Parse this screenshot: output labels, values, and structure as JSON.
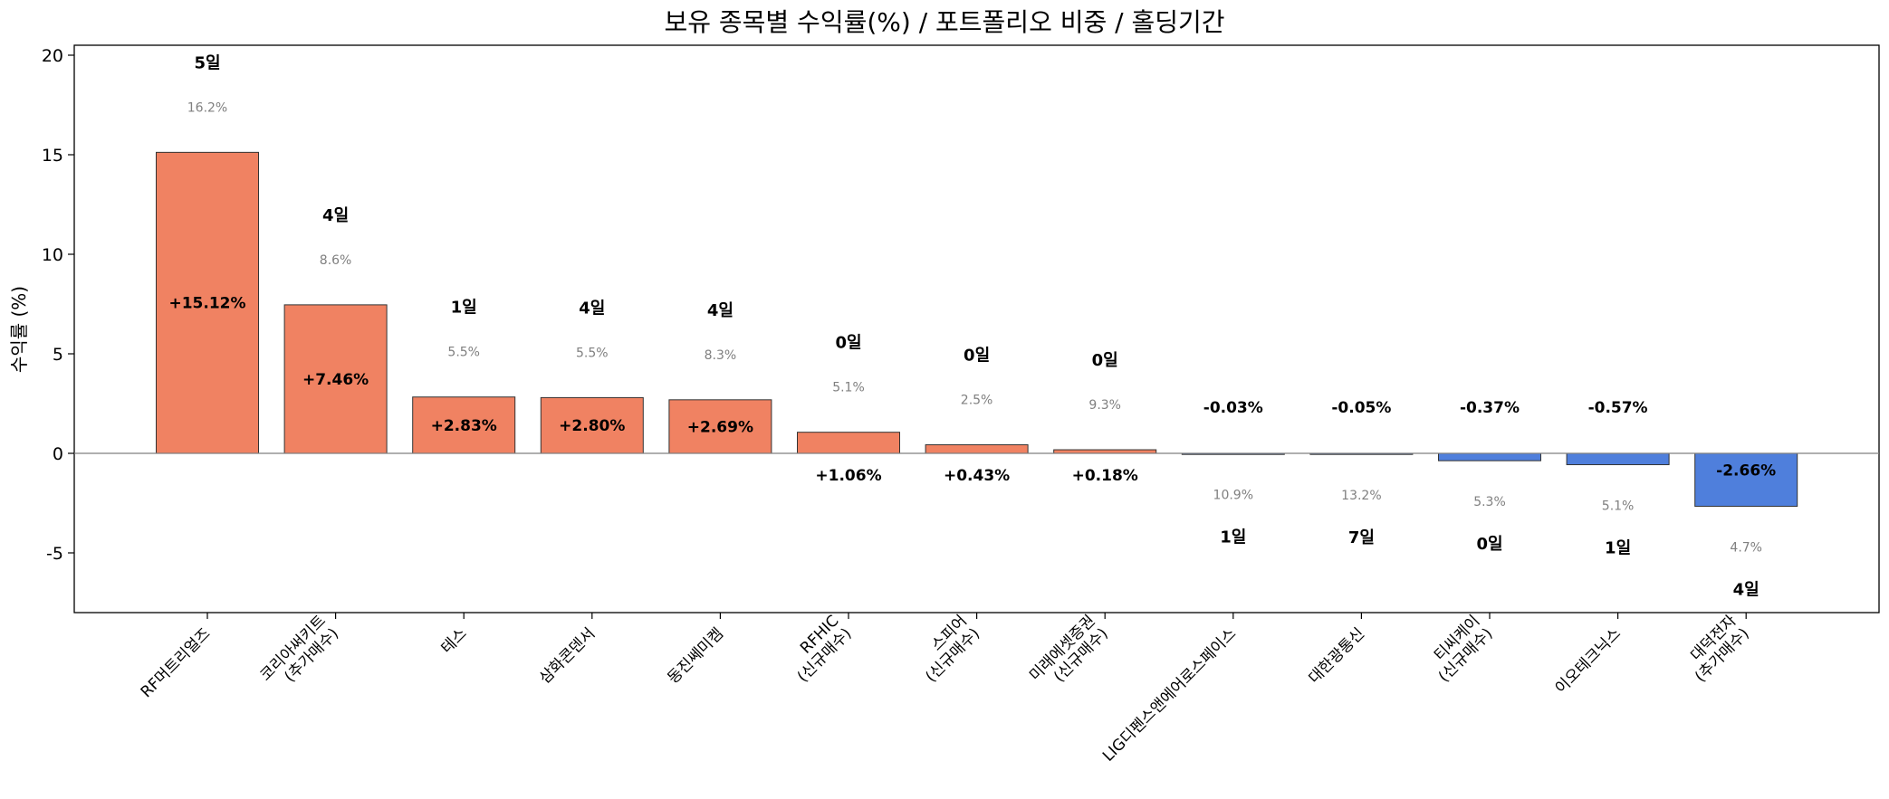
{
  "chart_data": {
    "type": "bar",
    "title": "보유 종목별 수익률(%) / 포트폴리오 비중 / 홀딩기간",
    "xlabel": "",
    "ylabel": "수익률 (%)",
    "ylim": [
      -8,
      20.5
    ],
    "yticks": [
      -5,
      0,
      5,
      10,
      15,
      20
    ],
    "ytick_labels": [
      "-5",
      "0",
      "5",
      "10",
      "15",
      "20"
    ],
    "grid": false,
    "legend": "none",
    "colors": {
      "positive": "#f08262",
      "negative": "#4f7fdc",
      "edge": "#333333",
      "zero_line": "#808080",
      "weight_text": "#808080"
    },
    "categories": [
      [
        "RF머트리얼즈"
      ],
      [
        "코리아써키트",
        "(추가매수)"
      ],
      [
        "테스"
      ],
      [
        "삼화콘덴서"
      ],
      [
        "동진쎄미켐"
      ],
      [
        "RFHIC",
        "(신규매수)"
      ],
      [
        "스피어",
        "(신규매수)"
      ],
      [
        "미래에셋증권",
        "(신규매수)"
      ],
      [
        "LIG디펜스앤에어로스페이스"
      ],
      [
        "대한광통신"
      ],
      [
        "티씨케이",
        "(신규매수)"
      ],
      [
        "이오테크닉스"
      ],
      [
        "대덕전자",
        "(추가매수)"
      ]
    ],
    "values": [
      15.12,
      7.46,
      2.83,
      2.8,
      2.69,
      1.06,
      0.43,
      0.18,
      -0.03,
      -0.05,
      -0.37,
      -0.57,
      -2.66
    ],
    "value_labels": [
      "+15.12%",
      "+7.46%",
      "+2.83%",
      "+2.80%",
      "+2.69%",
      "+1.06%",
      "+0.43%",
      "+0.18%",
      "-0.03%",
      "-0.05%",
      "-0.37%",
      "-0.57%",
      "-2.66%"
    ],
    "portfolio_weight": [
      16.2,
      8.6,
      5.5,
      5.5,
      8.3,
      5.1,
      2.5,
      9.3,
      10.9,
      13.2,
      5.3,
      5.1,
      4.7
    ],
    "weight_labels": [
      "16.2%",
      "8.6%",
      "5.5%",
      "5.5%",
      "8.3%",
      "5.1%",
      "2.5%",
      "9.3%",
      "10.9%",
      "13.2%",
      "5.3%",
      "5.1%",
      "4.7%"
    ],
    "holding_days": [
      5,
      4,
      1,
      4,
      4,
      0,
      0,
      0,
      1,
      7,
      0,
      1,
      4
    ],
    "days_labels": [
      "5일",
      "4일",
      "1일",
      "4일",
      "4일",
      "0일",
      "0일",
      "0일",
      "1일",
      "7일",
      "0일",
      "1일",
      "4일"
    ]
  }
}
